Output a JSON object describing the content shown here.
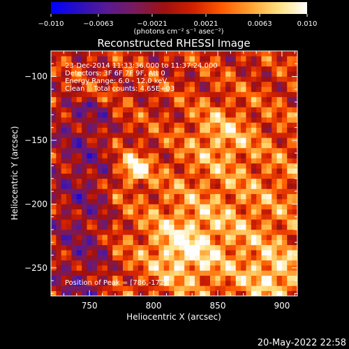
{
  "chart_data": {
    "type": "heatmap",
    "title": "Reconstructed RHESSI Image",
    "xlabel": "Heliocentric X (arcsec)",
    "ylabel": "Heliocentric Y (arcsec)",
    "xlim": [
      720,
      912
    ],
    "ylim": [
      -272,
      -80
    ],
    "xticks": [
      750,
      800,
      850,
      900
    ],
    "xtick_labels": [
      "750",
      "800",
      "850",
      "900"
    ],
    "yticks": [
      -100,
      -150,
      -200,
      -250
    ],
    "ytick_labels": [
      "−100",
      "−150",
      "−200",
      "−250"
    ],
    "colorbar": {
      "range": [
        -0.01,
        0.01
      ],
      "ticks": [
        -0.01,
        -0.0063,
        -0.0021,
        0.0021,
        0.0063,
        0.01
      ],
      "tick_labels": [
        "−0.010",
        "−0.0063",
        "−0.0021",
        "0.0021",
        "0.0063",
        "0.010"
      ],
      "units": "(photons cm⁻² s⁻¹ asec⁻²)",
      "colors": [
        "#0000ff",
        "#2a10c0",
        "#5a1a90",
        "#7a1a5a",
        "#a01010",
        "#d02000",
        "#ff5a00",
        "#ffa030",
        "#ffe080",
        "#ffffff"
      ]
    },
    "annotations": [
      "23-Dec-2014 11:33:36.000 to 11:37:24.000",
      "Detectors: 3F 6F 7F 9F, Att 0",
      "Energy Range: 6.0 - 12.0 keV",
      "Clean    Total counts: 4.65E+03",
      "Position of Peak = [786,-172]"
    ],
    "peak": {
      "x": 786,
      "y": -172
    },
    "sources": [
      {
        "x": 786,
        "y": -172,
        "value": 0.01
      },
      {
        "x": 852,
        "y": -145,
        "value": 0.0055
      },
      {
        "x": 822,
        "y": -235,
        "value": 0.006
      },
      {
        "x": 895,
        "y": -258,
        "value": 0.0065
      }
    ],
    "grid": false
  },
  "footer": {
    "date": "20-May-2022 22:58"
  }
}
